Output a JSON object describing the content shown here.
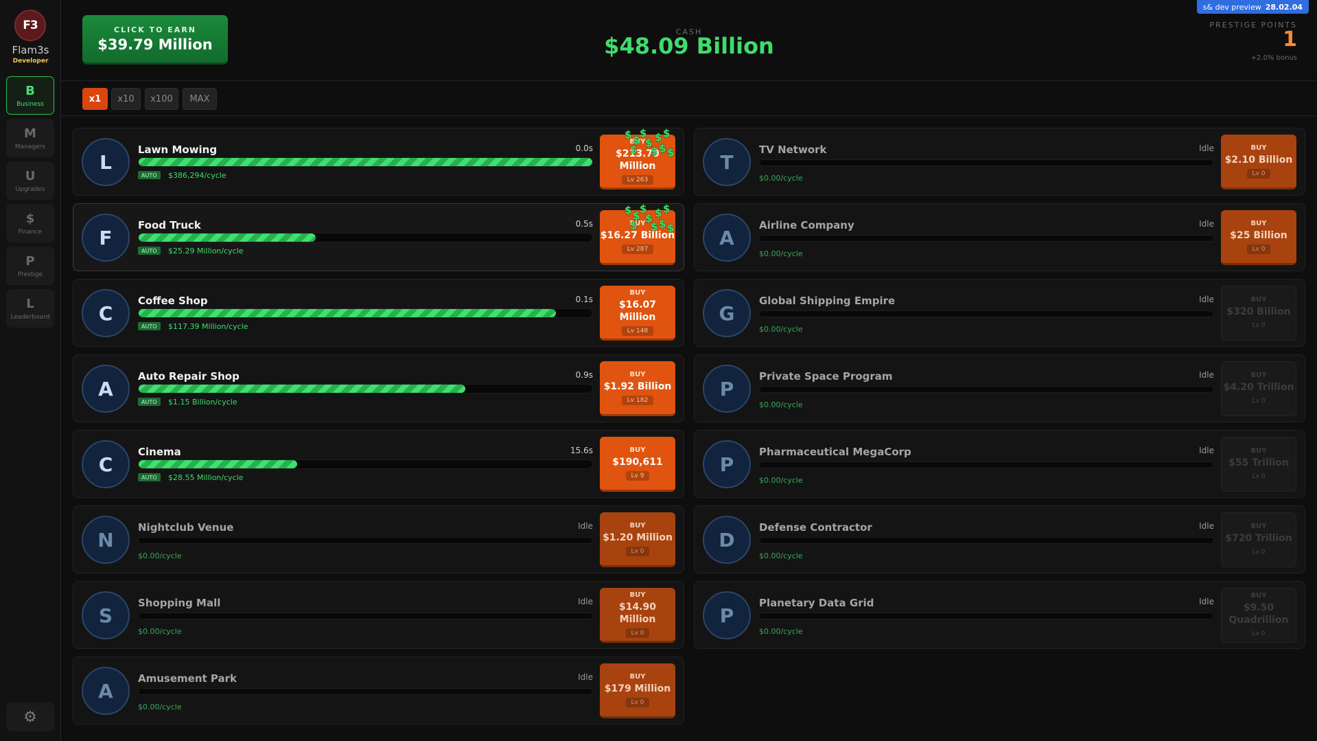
{
  "sidebar": {
    "logo_text": "F3",
    "user_name": "Flam3s",
    "user_role": "Developer",
    "items": [
      {
        "letter": "B",
        "label": "Business",
        "active": true
      },
      {
        "letter": "M",
        "label": "Managers",
        "active": false
      },
      {
        "letter": "U",
        "label": "Upgrades",
        "active": false
      },
      {
        "letter": "$",
        "label": "Finance",
        "active": false
      },
      {
        "letter": "P",
        "label": "Prestige",
        "active": false
      },
      {
        "letter": "L",
        "label": "Leaderboard",
        "active": false
      }
    ],
    "settings_icon": "gear-icon"
  },
  "header": {
    "click_label": "CLICK TO EARN",
    "click_value": "$39.79 Million",
    "cash_label": "CASH",
    "cash_value": "$48.09 Billion",
    "dev_badge": "s& dev preview",
    "dev_version": "28.02.04",
    "prestige_label": "PRESTIGE POINTS",
    "prestige_value": "1",
    "prestige_bonus": "+2.0% bonus"
  },
  "multipliers": [
    "x1",
    "x10",
    "x100",
    "MAX"
  ],
  "multiplier_selected": "x1",
  "colors": {
    "accent": "#e0540f",
    "money": "#3fdc6c",
    "brand_green": "#1c8a3c"
  },
  "businesses_left": [
    {
      "letter": "L",
      "name": "Lawn Mowing",
      "time": "0.0s",
      "progress": 1.0,
      "auto": "AUTO",
      "rate": "$386,294/cycle",
      "buy": "BUY",
      "cost": "$213.79 Million",
      "level": "Lv 263",
      "state": "active",
      "coins": true,
      "highlight": false
    },
    {
      "letter": "F",
      "name": "Food Truck",
      "time": "0.5s",
      "progress": 0.39,
      "auto": "AUTO",
      "rate": "$25.29 Million/cycle",
      "buy": "BUY",
      "cost": "$16.27 Billion",
      "level": "Lv 287",
      "state": "active",
      "coins": true,
      "highlight": true
    },
    {
      "letter": "C",
      "name": "Coffee Shop",
      "time": "0.1s",
      "progress": 0.92,
      "auto": "AUTO",
      "rate": "$117.39 Million/cycle",
      "buy": "BUY",
      "cost": "$16.07 Million",
      "level": "Lv 148",
      "state": "active",
      "coins": false,
      "highlight": false
    },
    {
      "letter": "A",
      "name": "Auto Repair Shop",
      "time": "0.9s",
      "progress": 0.72,
      "auto": "AUTO",
      "rate": "$1.15 Billion/cycle",
      "buy": "BUY",
      "cost": "$1.92 Billion",
      "level": "Lv 182",
      "state": "active",
      "coins": false,
      "highlight": false
    },
    {
      "letter": "C",
      "name": "Cinema",
      "time": "15.6s",
      "progress": 0.35,
      "auto": "AUTO",
      "rate": "$28.55 Million/cycle",
      "buy": "BUY",
      "cost": "$190,611",
      "level": "Lv 9",
      "state": "active",
      "coins": false,
      "highlight": false
    },
    {
      "letter": "N",
      "name": "Nightclub Venue",
      "time": "Idle",
      "progress": 0,
      "auto": "",
      "rate": "$0.00/cycle",
      "buy": "BUY",
      "cost": "$1.20 Million",
      "level": "Lv 0",
      "state": "dim",
      "coins": false,
      "highlight": false
    },
    {
      "letter": "S",
      "name": "Shopping Mall",
      "time": "Idle",
      "progress": 0,
      "auto": "",
      "rate": "$0.00/cycle",
      "buy": "BUY",
      "cost": "$14.90 Million",
      "level": "Lv 0",
      "state": "dim",
      "coins": false,
      "highlight": false
    },
    {
      "letter": "A",
      "name": "Amusement Park",
      "time": "Idle",
      "progress": 0,
      "auto": "",
      "rate": "$0.00/cycle",
      "buy": "BUY",
      "cost": "$179 Million",
      "level": "Lv 0",
      "state": "dim",
      "coins": false,
      "highlight": false
    }
  ],
  "businesses_right": [
    {
      "letter": "T",
      "name": "TV Network",
      "time": "Idle",
      "progress": 0,
      "auto": "",
      "rate": "$0.00/cycle",
      "buy": "BUY",
      "cost": "$2.10 Billion",
      "level": "Lv 0",
      "state": "dim",
      "coins": false,
      "highlight": false
    },
    {
      "letter": "A",
      "name": "Airline Company",
      "time": "Idle",
      "progress": 0,
      "auto": "",
      "rate": "$0.00/cycle",
      "buy": "BUY",
      "cost": "$25 Billion",
      "level": "Lv 0",
      "state": "dim",
      "coins": false,
      "highlight": false
    },
    {
      "letter": "G",
      "name": "Global Shipping Empire",
      "time": "Idle",
      "progress": 0,
      "auto": "",
      "rate": "$0.00/cycle",
      "buy": "BUY",
      "cost": "$320 Billion",
      "level": "Lv 0",
      "state": "dis",
      "coins": false,
      "highlight": false
    },
    {
      "letter": "P",
      "name": "Private Space Program",
      "time": "Idle",
      "progress": 0,
      "auto": "",
      "rate": "$0.00/cycle",
      "buy": "BUY",
      "cost": "$4.20 Trillion",
      "level": "Lv 0",
      "state": "dis",
      "coins": false,
      "highlight": false
    },
    {
      "letter": "P",
      "name": "Pharmaceutical MegaCorp",
      "time": "Idle",
      "progress": 0,
      "auto": "",
      "rate": "$0.00/cycle",
      "buy": "BUY",
      "cost": "$55 Trillion",
      "level": "Lv 0",
      "state": "dis",
      "coins": false,
      "highlight": false
    },
    {
      "letter": "D",
      "name": "Defense Contractor",
      "time": "Idle",
      "progress": 0,
      "auto": "",
      "rate": "$0.00/cycle",
      "buy": "BUY",
      "cost": "$720 Trillion",
      "level": "Lv 0",
      "state": "dis",
      "coins": false,
      "highlight": false
    },
    {
      "letter": "P",
      "name": "Planetary Data Grid",
      "time": "Idle",
      "progress": 0,
      "auto": "",
      "rate": "$0.00/cycle",
      "buy": "BUY",
      "cost": "$9.50 Quadrillion",
      "level": "Lv 0",
      "state": "dis",
      "coins": false,
      "highlight": false
    }
  ]
}
